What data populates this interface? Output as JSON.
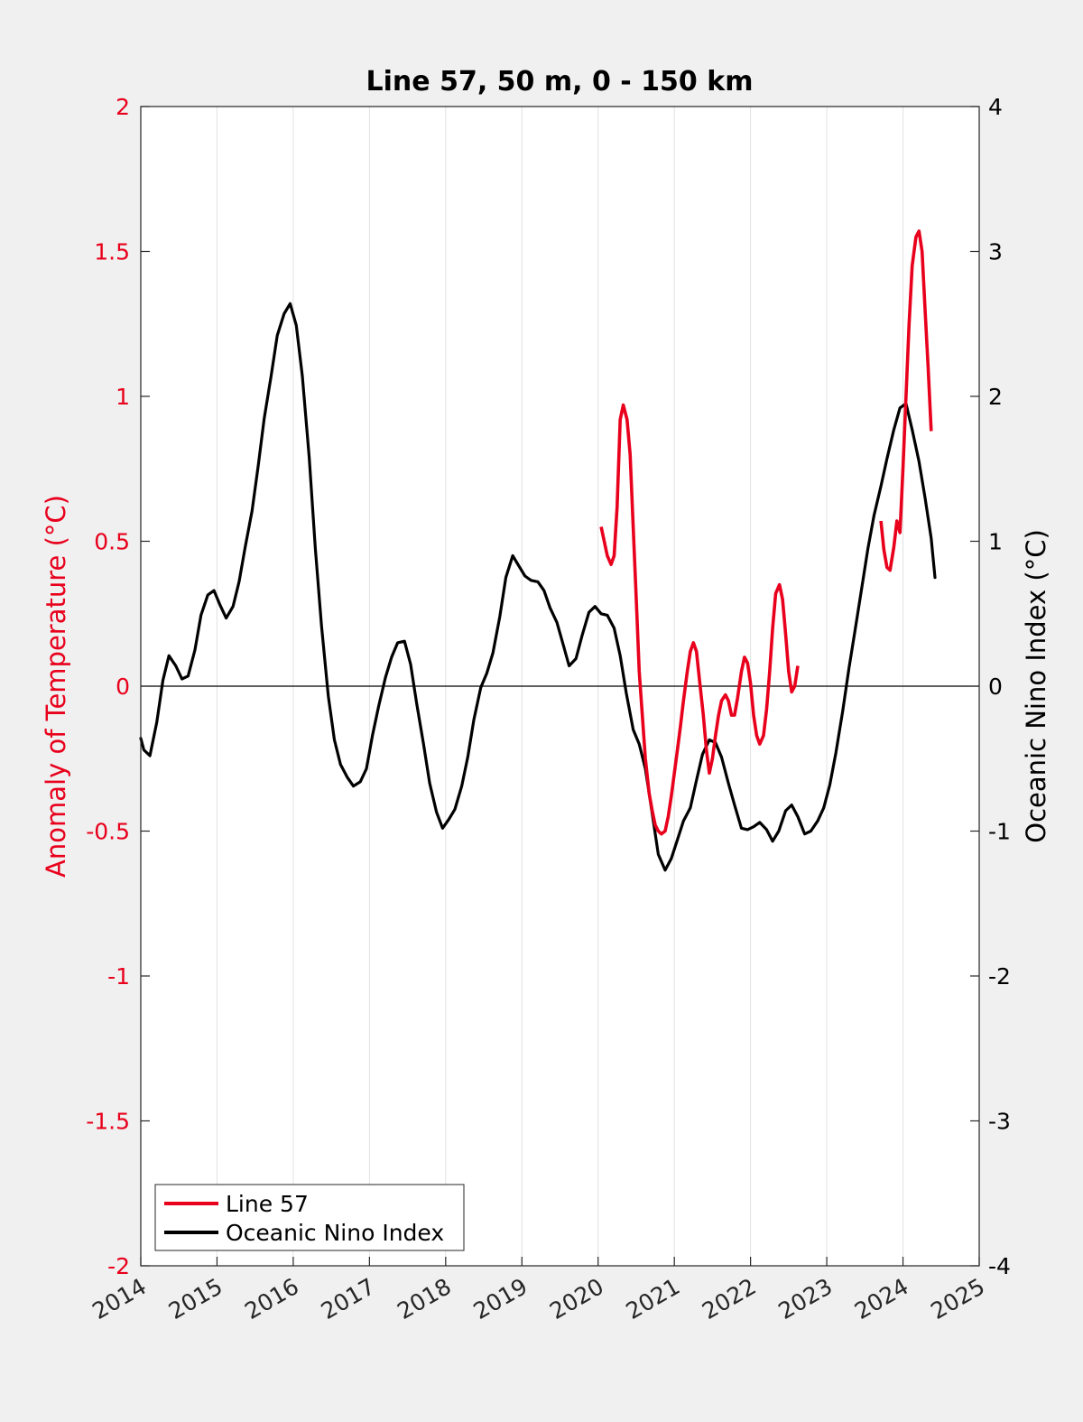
{
  "chart_data": {
    "type": "line",
    "title": "Line 57, 50 m, 0 - 150 km",
    "ylabel": "Anomaly of Temperature (°C)",
    "y2label": "Oceanic Nino Index (°C)",
    "xlim": [
      2014,
      2025
    ],
    "ylim": [
      -2,
      2
    ],
    "y2lim": [
      -4,
      4
    ],
    "x_ticks": [
      "2014",
      "2015",
      "2016",
      "2017",
      "2018",
      "2019",
      "2020",
      "2021",
      "2022",
      "2023",
      "2024",
      "2025"
    ],
    "y_ticks": [
      "-2",
      "-1.5",
      "-1",
      "-0.5",
      "0",
      "0.5",
      "1",
      "1.5",
      "2"
    ],
    "y2_ticks": [
      "-4",
      "-3",
      "-2",
      "-1",
      "0",
      "1",
      "2",
      "3",
      "4"
    ],
    "grid": "vertical",
    "legend_position": "bottom-left",
    "colors": {
      "line57": "#e8001c",
      "oni": "#000000",
      "left_axis": "#e8001c",
      "right_axis": "#000000"
    },
    "series": [
      {
        "name": "Line 57",
        "axis": "left",
        "segments": [
          [
            [
              2020.04,
              0.55
            ],
            [
              2020.12,
              0.45
            ],
            [
              2020.17,
              0.42
            ],
            [
              2020.21,
              0.45
            ],
            [
              2020.25,
              0.62
            ],
            [
              2020.29,
              0.92
            ],
            [
              2020.33,
              0.97
            ],
            [
              2020.38,
              0.92
            ],
            [
              2020.42,
              0.8
            ],
            [
              2020.46,
              0.55
            ],
            [
              2020.5,
              0.3
            ],
            [
              2020.54,
              0.05
            ],
            [
              2020.58,
              -0.1
            ],
            [
              2020.62,
              -0.25
            ],
            [
              2020.67,
              -0.37
            ],
            [
              2020.71,
              -0.43
            ],
            [
              2020.75,
              -0.48
            ],
            [
              2020.79,
              -0.5
            ],
            [
              2020.83,
              -0.51
            ],
            [
              2020.88,
              -0.5
            ],
            [
              2020.92,
              -0.45
            ],
            [
              2020.96,
              -0.38
            ],
            [
              2021.0,
              -0.3
            ],
            [
              2021.04,
              -0.22
            ],
            [
              2021.08,
              -0.14
            ],
            [
              2021.12,
              -0.05
            ],
            [
              2021.17,
              0.05
            ],
            [
              2021.21,
              0.12
            ],
            [
              2021.25,
              0.15
            ],
            [
              2021.29,
              0.12
            ],
            [
              2021.33,
              0.02
            ],
            [
              2021.38,
              -0.1
            ],
            [
              2021.42,
              -0.22
            ],
            [
              2021.46,
              -0.3
            ],
            [
              2021.5,
              -0.25
            ],
            [
              2021.54,
              -0.17
            ],
            [
              2021.58,
              -0.1
            ],
            [
              2021.62,
              -0.05
            ],
            [
              2021.67,
              -0.03
            ],
            [
              2021.71,
              -0.05
            ],
            [
              2021.75,
              -0.1
            ],
            [
              2021.79,
              -0.1
            ],
            [
              2021.83,
              -0.04
            ],
            [
              2021.88,
              0.05
            ],
            [
              2021.92,
              0.1
            ],
            [
              2021.96,
              0.08
            ],
            [
              2022.0,
              0.01
            ],
            [
              2022.04,
              -0.1
            ],
            [
              2022.08,
              -0.17
            ],
            [
              2022.12,
              -0.2
            ],
            [
              2022.17,
              -0.17
            ],
            [
              2022.21,
              -0.08
            ],
            [
              2022.25,
              0.05
            ],
            [
              2022.29,
              0.2
            ],
            [
              2022.33,
              0.32
            ],
            [
              2022.38,
              0.35
            ],
            [
              2022.42,
              0.3
            ],
            [
              2022.46,
              0.18
            ],
            [
              2022.5,
              0.05
            ],
            [
              2022.54,
              -0.02
            ],
            [
              2022.58,
              0.0
            ],
            [
              2022.62,
              0.07
            ]
          ],
          [
            [
              2023.71,
              0.57
            ],
            [
              2023.75,
              0.47
            ],
            [
              2023.79,
              0.41
            ],
            [
              2023.83,
              0.4
            ],
            [
              2023.88,
              0.48
            ],
            [
              2023.92,
              0.57
            ],
            [
              2023.96,
              0.53
            ],
            [
              2024.0,
              0.75
            ],
            [
              2024.04,
              1.0
            ],
            [
              2024.08,
              1.25
            ],
            [
              2024.12,
              1.45
            ],
            [
              2024.17,
              1.55
            ],
            [
              2024.21,
              1.57
            ],
            [
              2024.25,
              1.5
            ],
            [
              2024.29,
              1.3
            ],
            [
              2024.33,
              1.1
            ],
            [
              2024.37,
              0.88
            ]
          ]
        ]
      },
      {
        "name": "Oceanic Nino Index",
        "axis": "right",
        "points": [
          [
            2014.0,
            -0.36
          ],
          [
            2014.04,
            -0.44
          ],
          [
            2014.12,
            -0.48
          ],
          [
            2014.21,
            -0.25
          ],
          [
            2014.29,
            0.04
          ],
          [
            2014.37,
            0.21
          ],
          [
            2014.46,
            0.14
          ],
          [
            2014.54,
            0.05
          ],
          [
            2014.62,
            0.07
          ],
          [
            2014.71,
            0.25
          ],
          [
            2014.79,
            0.49
          ],
          [
            2014.88,
            0.63
          ],
          [
            2014.96,
            0.66
          ],
          [
            2015.04,
            0.56
          ],
          [
            2015.12,
            0.47
          ],
          [
            2015.21,
            0.55
          ],
          [
            2015.29,
            0.72
          ],
          [
            2015.37,
            0.96
          ],
          [
            2015.46,
            1.21
          ],
          [
            2015.54,
            1.52
          ],
          [
            2015.62,
            1.85
          ],
          [
            2015.71,
            2.14
          ],
          [
            2015.79,
            2.42
          ],
          [
            2015.88,
            2.57
          ],
          [
            2015.96,
            2.64
          ],
          [
            2016.04,
            2.49
          ],
          [
            2016.12,
            2.14
          ],
          [
            2016.21,
            1.58
          ],
          [
            2016.29,
            0.95
          ],
          [
            2016.37,
            0.42
          ],
          [
            2016.46,
            -0.07
          ],
          [
            2016.54,
            -0.37
          ],
          [
            2016.62,
            -0.54
          ],
          [
            2016.71,
            -0.63
          ],
          [
            2016.79,
            -0.69
          ],
          [
            2016.88,
            -0.66
          ],
          [
            2016.96,
            -0.57
          ],
          [
            2017.04,
            -0.34
          ],
          [
            2017.12,
            -0.14
          ],
          [
            2017.21,
            0.06
          ],
          [
            2017.29,
            0.2
          ],
          [
            2017.37,
            0.3
          ],
          [
            2017.46,
            0.31
          ],
          [
            2017.54,
            0.15
          ],
          [
            2017.62,
            -0.12
          ],
          [
            2017.71,
            -0.4
          ],
          [
            2017.79,
            -0.67
          ],
          [
            2017.88,
            -0.87
          ],
          [
            2017.96,
            -0.98
          ],
          [
            2018.04,
            -0.92
          ],
          [
            2018.12,
            -0.85
          ],
          [
            2018.21,
            -0.69
          ],
          [
            2018.29,
            -0.49
          ],
          [
            2018.37,
            -0.23
          ],
          [
            2018.46,
            -0.01
          ],
          [
            2018.54,
            0.09
          ],
          [
            2018.62,
            0.23
          ],
          [
            2018.71,
            0.48
          ],
          [
            2018.79,
            0.75
          ],
          [
            2018.88,
            0.9
          ],
          [
            2018.96,
            0.83
          ],
          [
            2019.04,
            0.76
          ],
          [
            2019.12,
            0.73
          ],
          [
            2019.21,
            0.72
          ],
          [
            2019.29,
            0.66
          ],
          [
            2019.37,
            0.54
          ],
          [
            2019.46,
            0.44
          ],
          [
            2019.54,
            0.29
          ],
          [
            2019.62,
            0.14
          ],
          [
            2019.71,
            0.19
          ],
          [
            2019.79,
            0.35
          ],
          [
            2019.88,
            0.51
          ],
          [
            2019.96,
            0.55
          ],
          [
            2020.04,
            0.5
          ],
          [
            2020.12,
            0.49
          ],
          [
            2020.21,
            0.4
          ],
          [
            2020.29,
            0.21
          ],
          [
            2020.37,
            -0.05
          ],
          [
            2020.46,
            -0.3
          ],
          [
            2020.54,
            -0.4
          ],
          [
            2020.62,
            -0.57
          ],
          [
            2020.71,
            -0.88
          ],
          [
            2020.79,
            -1.16
          ],
          [
            2020.88,
            -1.27
          ],
          [
            2020.96,
            -1.19
          ],
          [
            2021.04,
            -1.06
          ],
          [
            2021.12,
            -0.93
          ],
          [
            2021.21,
            -0.84
          ],
          [
            2021.29,
            -0.65
          ],
          [
            2021.37,
            -0.47
          ],
          [
            2021.46,
            -0.37
          ],
          [
            2021.54,
            -0.39
          ],
          [
            2021.62,
            -0.49
          ],
          [
            2021.71,
            -0.67
          ],
          [
            2021.79,
            -0.82
          ],
          [
            2021.88,
            -0.98
          ],
          [
            2021.96,
            -0.99
          ],
          [
            2022.04,
            -0.97
          ],
          [
            2022.12,
            -0.94
          ],
          [
            2022.21,
            -0.99
          ],
          [
            2022.29,
            -1.07
          ],
          [
            2022.37,
            -1.0
          ],
          [
            2022.46,
            -0.86
          ],
          [
            2022.54,
            -0.82
          ],
          [
            2022.62,
            -0.9
          ],
          [
            2022.71,
            -1.02
          ],
          [
            2022.79,
            -1.0
          ],
          [
            2022.88,
            -0.93
          ],
          [
            2022.96,
            -0.84
          ],
          [
            2023.04,
            -0.68
          ],
          [
            2023.12,
            -0.46
          ],
          [
            2023.21,
            -0.17
          ],
          [
            2023.29,
            0.12
          ],
          [
            2023.37,
            0.38
          ],
          [
            2023.46,
            0.68
          ],
          [
            2023.54,
            0.95
          ],
          [
            2023.62,
            1.18
          ],
          [
            2023.71,
            1.38
          ],
          [
            2023.79,
            1.57
          ],
          [
            2023.88,
            1.77
          ],
          [
            2023.96,
            1.92
          ],
          [
            2024.04,
            1.95
          ],
          [
            2024.12,
            1.77
          ],
          [
            2024.21,
            1.55
          ],
          [
            2024.29,
            1.3
          ],
          [
            2024.37,
            1.02
          ],
          [
            2024.42,
            0.75
          ]
        ]
      }
    ]
  }
}
